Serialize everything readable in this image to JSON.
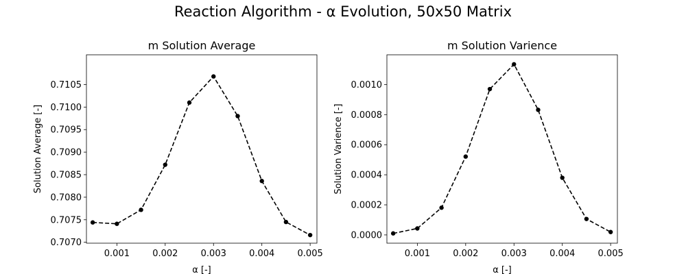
{
  "figure": {
    "suptitle": "Reaction Algorithm - α Evolution, 50x50 Matrix"
  },
  "chart_data": [
    {
      "type": "line",
      "title": "m Solution Average",
      "xlabel": "α [-]",
      "ylabel": "Solution Average [-]",
      "x": [
        0.0005,
        0.001,
        0.0015,
        0.002,
        0.0025,
        0.003,
        0.0035,
        0.004,
        0.0045,
        0.005
      ],
      "series": [
        {
          "values": [
            0.70744,
            0.70741,
            0.70772,
            0.70872,
            0.7101,
            0.71068,
            0.7098,
            0.70836,
            0.70745,
            0.70716
          ],
          "color": "#000000",
          "linestyle": "dashed",
          "marker": "circle"
        }
      ],
      "xlim": [
        0.00037,
        0.00514
      ],
      "ylim": [
        0.70698,
        0.71116
      ],
      "xticks": [
        0.001,
        0.002,
        0.003,
        0.004,
        0.005
      ],
      "xtick_labels": [
        "0.001",
        "0.002",
        "0.003",
        "0.004",
        "0.005"
      ],
      "yticks": [
        0.707,
        0.7075,
        0.708,
        0.7085,
        0.709,
        0.7095,
        0.71,
        0.7105
      ],
      "ytick_labels": [
        "0.7070",
        "0.7075",
        "0.7080",
        "0.7085",
        "0.7090",
        "0.7095",
        "0.7100",
        "0.7105"
      ],
      "grid": false
    },
    {
      "type": "line",
      "title": "m Solution Varience",
      "xlabel": "α [-]",
      "ylabel": "Solution Varience [-]",
      "x": [
        0.0005,
        0.001,
        0.0015,
        0.002,
        0.0025,
        0.003,
        0.0035,
        0.004,
        0.0045,
        0.005
      ],
      "series": [
        {
          "values": [
            1e-05,
            4.3e-05,
            0.000181,
            0.000521,
            0.00097,
            0.001135,
            0.000832,
            0.00038,
            0.000106,
            1.9e-05
          ],
          "color": "#000000",
          "linestyle": "dashed",
          "marker": "circle"
        }
      ],
      "xlim": [
        0.00037,
        0.00514
      ],
      "ylim": [
        -5.5e-05,
        0.001198
      ],
      "xticks": [
        0.001,
        0.002,
        0.003,
        0.004,
        0.005
      ],
      "xtick_labels": [
        "0.001",
        "0.002",
        "0.003",
        "0.004",
        "0.005"
      ],
      "yticks": [
        0.0,
        0.0002,
        0.0004,
        0.0006,
        0.0008,
        0.001
      ],
      "ytick_labels": [
        "0.0000",
        "0.0002",
        "0.0004",
        "0.0006",
        "0.0008",
        "0.0010"
      ],
      "grid": false
    }
  ]
}
